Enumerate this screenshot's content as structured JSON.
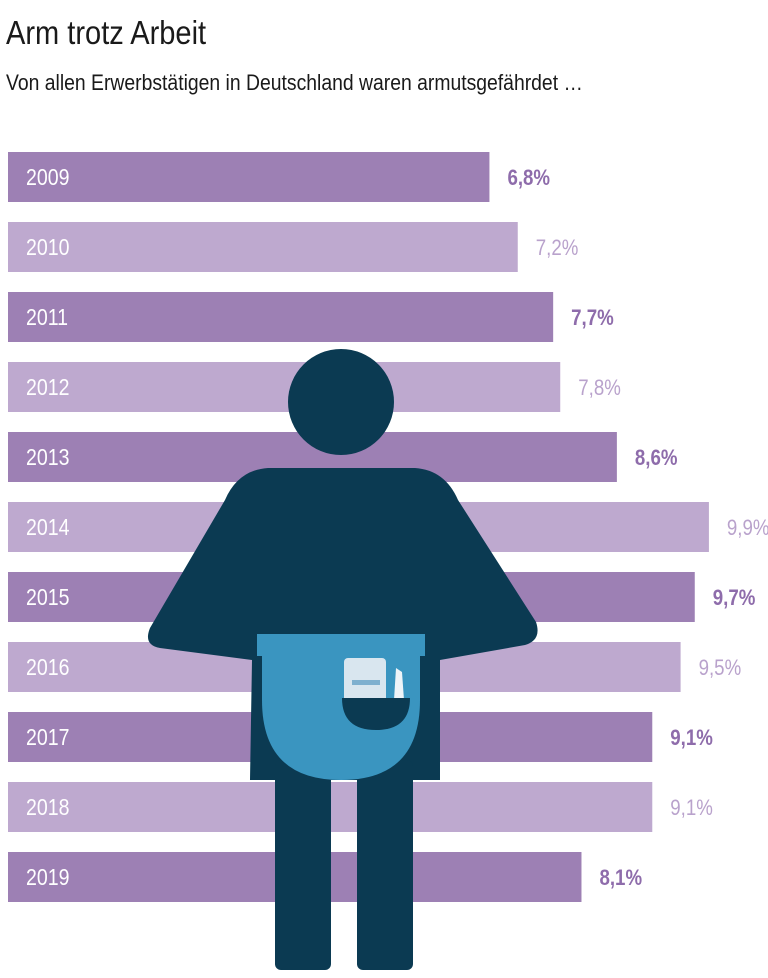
{
  "title": "Arm trotz Arbeit",
  "subtitle": "Von allen Erwerbstätigen in Deutschland waren armutsgefährdet …",
  "colors": {
    "dark_bar": "#9d80b4",
    "light_bar": "#bea9cf",
    "dark_label": "#8e6cab",
    "light_label": "#b9a2cc",
    "figure": "#0b3a52",
    "apron": "#3a95c0"
  },
  "chart_data": {
    "type": "bar",
    "orientation": "horizontal",
    "title": "Arm trotz Arbeit",
    "subtitle": "Von allen Erwerbstätigen in Deutschland waren armutsgefährdet …",
    "xlabel": "",
    "ylabel": "",
    "xlim": [
      0,
      10
    ],
    "grid": false,
    "categories": [
      "2009",
      "2010",
      "2011",
      "2012",
      "2013",
      "2014",
      "2015",
      "2016",
      "2017",
      "2018",
      "2019"
    ],
    "values": [
      6.8,
      7.2,
      7.7,
      7.8,
      8.6,
      9.9,
      9.7,
      9.5,
      9.1,
      9.1,
      8.1
    ],
    "value_labels": [
      "6,8%",
      "7,2%",
      "7,7%",
      "7,8%",
      "8,6%",
      "9,9%",
      "9,7%",
      "9,5%",
      "9,1%",
      "9,1%",
      "8,1%"
    ],
    "unit": "%"
  }
}
